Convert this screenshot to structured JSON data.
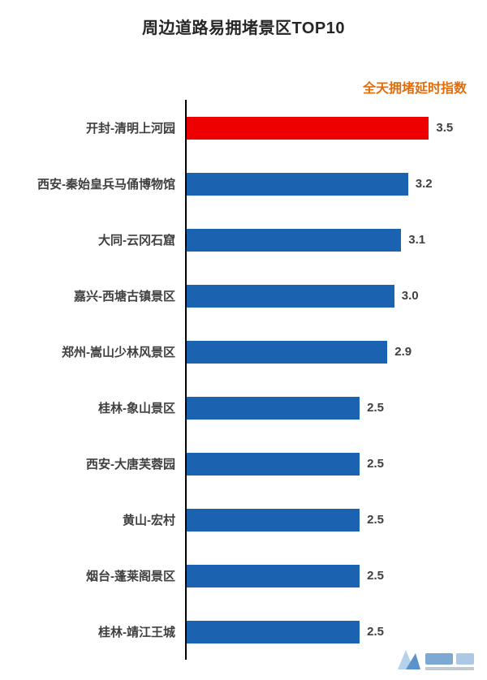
{
  "chart_data": {
    "type": "bar",
    "orientation": "horizontal",
    "title": "周边道路易拥堵景区TOP10",
    "legend": "全天拥堵延时指数",
    "legend_position": "top-right",
    "categories": [
      "开封-清明上河园",
      "西安-秦始皇兵马俑博物馆",
      "大同-云冈石窟",
      "嘉兴-西塘古镇景区",
      "郑州-嵩山少林风景区",
      "桂林-象山景区",
      "西安-大唐芙蓉园",
      "黄山-宏村",
      "烟台-蓬莱阁景区",
      "桂林-靖江王城"
    ],
    "values": [
      3.5,
      3.2,
      3.1,
      3.0,
      2.9,
      2.5,
      2.5,
      2.5,
      2.5,
      2.5
    ],
    "highlight_index": 0,
    "xlim": [
      0,
      4.34
    ],
    "grid": false,
    "colors": {
      "highlight_bar": "#ee0000",
      "bar": "#1b62b1",
      "legend_text": "#e36c0a",
      "title_text": "#262626",
      "label_text": "#404040",
      "value_text": "#404040",
      "axis_line": "#000000"
    }
  },
  "watermark": {
    "icon": "logo-watermark"
  }
}
